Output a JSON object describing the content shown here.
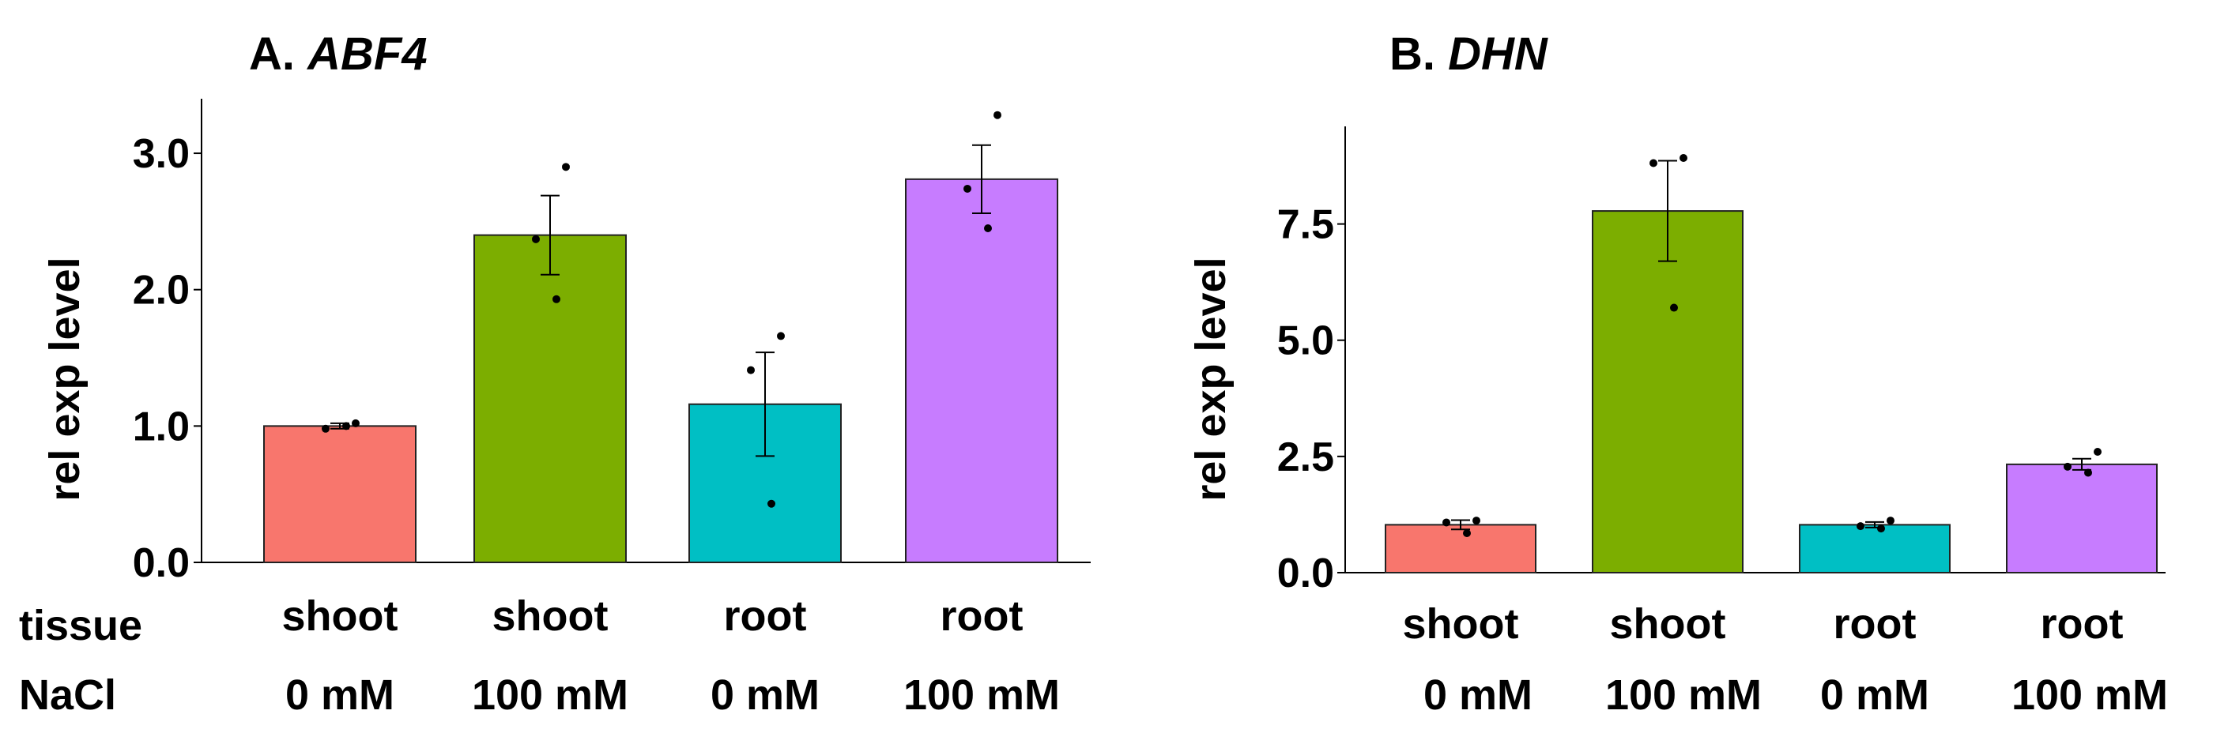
{
  "chart_data": [
    {
      "type": "bar",
      "title_prefix": "A.",
      "title_gene": "ABF4",
      "ylabel": "rel exp level",
      "ylim": [
        0,
        3.4
      ],
      "yticks": [
        0.0,
        1.0,
        2.0,
        3.0
      ],
      "ytick_labels": [
        "0.0",
        "1.0",
        "2.0",
        "3.0"
      ],
      "row_labels": {
        "tissue": "tissue",
        "nacl": "NaCl"
      },
      "categories": [
        {
          "tissue": "shoot",
          "nacl": "0 mM"
        },
        {
          "tissue": "shoot",
          "nacl": "100 mM"
        },
        {
          "tissue": "root",
          "nacl": "0 mM"
        },
        {
          "tissue": "root",
          "nacl": "100 mM"
        }
      ],
      "values": [
        1.0,
        2.4,
        1.16,
        2.81
      ],
      "error": [
        0.02,
        0.29,
        0.38,
        0.25
      ],
      "points": [
        [
          1.02,
          0.98,
          1.0
        ],
        [
          2.9,
          2.37,
          1.93
        ],
        [
          1.66,
          1.41,
          0.43
        ],
        [
          3.28,
          2.74,
          2.45
        ]
      ],
      "colors": [
        "#F8766D",
        "#7CAE00",
        "#00BFC4",
        "#C77CFF"
      ]
    },
    {
      "type": "bar",
      "title_prefix": "B.",
      "title_gene": "DHN",
      "ylabel": "rel exp level",
      "ylim": [
        0,
        9.6
      ],
      "yticks": [
        0.0,
        2.5,
        5.0,
        7.5
      ],
      "ytick_labels": [
        "0.0",
        "2.5",
        "5.0",
        "7.5"
      ],
      "categories": [
        {
          "tissue": "shoot",
          "nacl": "0 mM"
        },
        {
          "tissue": "shoot",
          "nacl": "100 mM"
        },
        {
          "tissue": "root",
          "nacl": "0 mM"
        },
        {
          "tissue": "root",
          "nacl": "100 mM"
        }
      ],
      "values": [
        1.03,
        7.78,
        1.03,
        2.33
      ],
      "error": [
        0.1,
        1.08,
        0.06,
        0.12
      ],
      "points": [
        [
          1.12,
          1.08,
          0.85
        ],
        [
          8.92,
          8.81,
          5.7
        ],
        [
          1.12,
          1.0,
          0.95
        ],
        [
          2.6,
          2.28,
          2.15
        ]
      ],
      "colors": [
        "#F8766D",
        "#7CAE00",
        "#00BFC4",
        "#C77CFF"
      ]
    }
  ]
}
